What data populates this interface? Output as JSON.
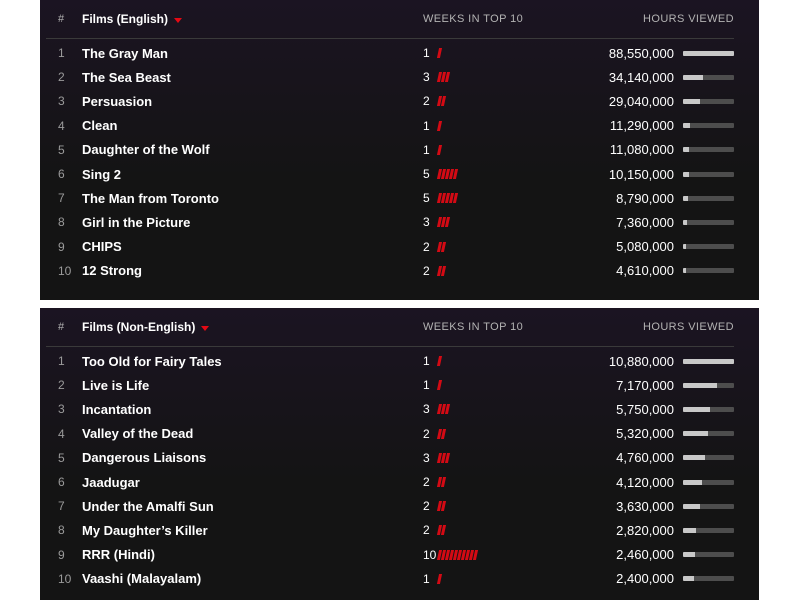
{
  "colors": {
    "accent": "#e50914",
    "panel_bg": "#141414",
    "bar_fill": "#c8c8c8",
    "bar_track": "#4d4d4d"
  },
  "tables": [
    {
      "header": {
        "rank": "#",
        "title": "Films (English)",
        "weeks": "WEEKS IN TOP 10",
        "hours": "HOURS VIEWED"
      },
      "rows": [
        {
          "rank": "1",
          "title": "The Gray Man",
          "weeks": "1",
          "hours": "88,550,000",
          "hours_value": 88550000
        },
        {
          "rank": "2",
          "title": "The Sea Beast",
          "weeks": "3",
          "hours": "34,140,000",
          "hours_value": 34140000
        },
        {
          "rank": "3",
          "title": "Persuasion",
          "weeks": "2",
          "hours": "29,040,000",
          "hours_value": 29040000
        },
        {
          "rank": "4",
          "title": "Clean",
          "weeks": "1",
          "hours": "11,290,000",
          "hours_value": 11290000
        },
        {
          "rank": "5",
          "title": "Daughter of the Wolf",
          "weeks": "1",
          "hours": "11,080,000",
          "hours_value": 11080000
        },
        {
          "rank": "6",
          "title": "Sing 2",
          "weeks": "5",
          "hours": "10,150,000",
          "hours_value": 10150000
        },
        {
          "rank": "7",
          "title": "The Man from Toronto",
          "weeks": "5",
          "hours": "8,790,000",
          "hours_value": 8790000
        },
        {
          "rank": "8",
          "title": "Girl in the Picture",
          "weeks": "3",
          "hours": "7,360,000",
          "hours_value": 7360000
        },
        {
          "rank": "9",
          "title": "CHIPS",
          "weeks": "2",
          "hours": "5,080,000",
          "hours_value": 5080000
        },
        {
          "rank": "10",
          "title": "12 Strong",
          "weeks": "2",
          "hours": "4,610,000",
          "hours_value": 4610000
        }
      ]
    },
    {
      "header": {
        "rank": "#",
        "title": "Films (Non-English)",
        "weeks": "WEEKS IN TOP 10",
        "hours": "HOURS VIEWED"
      },
      "rows": [
        {
          "rank": "1",
          "title": "Too Old for Fairy Tales",
          "weeks": "1",
          "hours": "10,880,000",
          "hours_value": 10880000
        },
        {
          "rank": "2",
          "title": "Live is Life",
          "weeks": "1",
          "hours": "7,170,000",
          "hours_value": 7170000
        },
        {
          "rank": "3",
          "title": "Incantation",
          "weeks": "3",
          "hours": "5,750,000",
          "hours_value": 5750000
        },
        {
          "rank": "4",
          "title": "Valley of the Dead",
          "weeks": "2",
          "hours": "5,320,000",
          "hours_value": 5320000
        },
        {
          "rank": "5",
          "title": "Dangerous Liaisons",
          "weeks": "3",
          "hours": "4,760,000",
          "hours_value": 4760000
        },
        {
          "rank": "6",
          "title": "Jaadugar",
          "weeks": "2",
          "hours": "4,120,000",
          "hours_value": 4120000
        },
        {
          "rank": "7",
          "title": "Under the Amalfi Sun",
          "weeks": "2",
          "hours": "3,630,000",
          "hours_value": 3630000
        },
        {
          "rank": "8",
          "title": "My Daughter’s Killer",
          "weeks": "2",
          "hours": "2,820,000",
          "hours_value": 2820000
        },
        {
          "rank": "9",
          "title": "RRR (Hindi)",
          "weeks": "10",
          "hours": "2,460,000",
          "hours_value": 2460000
        },
        {
          "rank": "10",
          "title": "Vaashi (Malayalam)",
          "weeks": "1",
          "hours": "2,400,000",
          "hours_value": 2400000
        }
      ]
    }
  ]
}
